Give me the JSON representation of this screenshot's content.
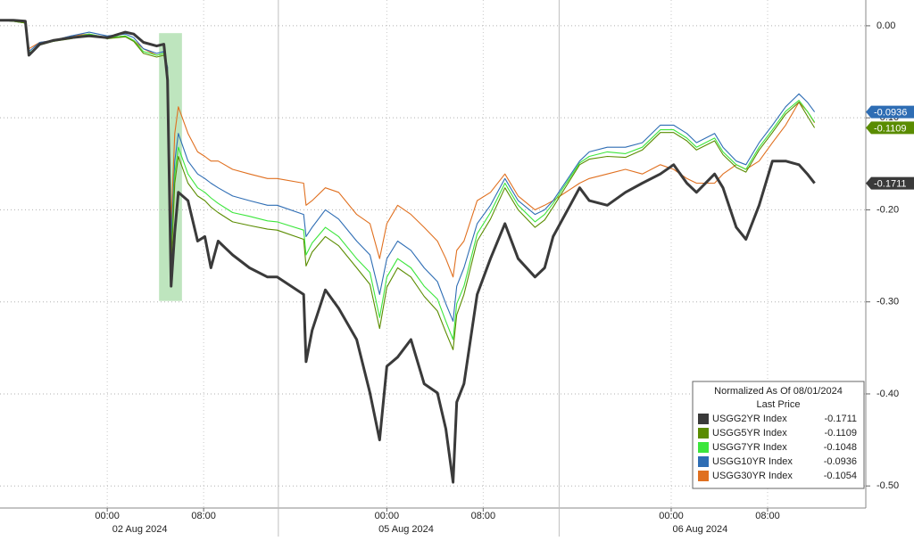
{
  "chart_data": {
    "type": "line",
    "legend_title": "Normalized As Of 08/01/2024",
    "legend_subtitle": "Last Price",
    "legend_position": "bottom-right",
    "grid": true,
    "x": [
      0,
      1.1,
      2.1,
      2.4,
      3.3,
      4.4,
      5.9,
      7.4,
      8.9,
      10.4,
      11.1,
      11.9,
      13.0,
      13.6,
      13.9,
      14.2,
      14.5,
      14.8,
      15.6,
      16.4,
      17.0,
      17.5,
      18.1,
      19.3,
      20.7,
      22.2,
      23.0,
      25.2,
      25.4,
      25.9,
      27.0,
      28.1,
      29.6,
      30.7,
      31.5,
      32.1,
      33.0,
      34.1,
      35.2,
      36.3,
      37.0,
      37.6,
      37.9,
      38.5,
      39.6,
      40.7,
      41.9,
      43.0,
      44.4,
      45.2,
      45.9,
      48.1,
      48.9,
      50.4,
      51.9,
      53.3,
      54.8,
      55.9,
      57.0,
      57.8,
      59.3,
      60.0,
      61.1,
      61.9,
      63.0,
      64.1,
      65.2,
      66.3,
      67.0,
      67.6
    ],
    "xlim": [
      0,
      71.85
    ],
    "xticks": [
      {
        "value": 8.9,
        "label": "00:00"
      },
      {
        "value": 16.9,
        "label": "08:00"
      },
      {
        "value": 32.1,
        "label": "00:00"
      },
      {
        "value": 40.1,
        "label": "08:00"
      },
      {
        "value": 55.7,
        "label": "00:00"
      },
      {
        "value": 63.7,
        "label": "08:00"
      }
    ],
    "date_labels": [
      {
        "value": 11.6,
        "label": "02 Aug 2024"
      },
      {
        "value": 33.7,
        "label": "05 Aug 2024"
      },
      {
        "value": 58.1,
        "label": "06 Aug 2024"
      }
    ],
    "session_breaks": [
      23.1,
      46.4
    ],
    "highlight_x": [
      13.2,
      15.1
    ],
    "highlight_y": [
      -0.299,
      -0.008
    ],
    "highlight_color": "#a8dca8",
    "ylim": [
      -0.524,
      0.028
    ],
    "yticks": [
      {
        "value": 0,
        "label": "0.00"
      },
      {
        "value": -0.1,
        "label": "-0.10"
      },
      {
        "value": -0.2,
        "label": "-0.20"
      },
      {
        "value": -0.3,
        "label": "-0.30"
      },
      {
        "value": -0.4,
        "label": "-0.40"
      },
      {
        "value": -0.5,
        "label": "-0.50"
      }
    ],
    "series": [
      {
        "name": "USGG2YR Index",
        "color": "#3a3a3a",
        "tag": true,
        "values": [
          0.006,
          0.006,
          0.005,
          -0.032,
          -0.02,
          -0.016,
          -0.013,
          -0.011,
          -0.013,
          -0.007,
          -0.009,
          -0.018,
          -0.022,
          -0.02,
          -0.059,
          -0.283,
          -0.224,
          -0.181,
          -0.19,
          -0.234,
          -0.229,
          -0.263,
          -0.234,
          -0.249,
          -0.263,
          -0.273,
          -0.273,
          -0.292,
          -0.365,
          -0.331,
          -0.287,
          -0.307,
          -0.341,
          -0.399,
          -0.45,
          -0.37,
          -0.36,
          -0.341,
          -0.389,
          -0.399,
          -0.438,
          -0.496,
          -0.409,
          -0.389,
          -0.292,
          -0.253,
          -0.215,
          -0.253,
          -0.273,
          -0.263,
          -0.229,
          -0.176,
          -0.19,
          -0.195,
          -0.181,
          -0.171,
          -0.161,
          -0.151,
          -0.171,
          -0.181,
          -0.161,
          -0.176,
          -0.219,
          -0.232,
          -0.195,
          -0.147,
          -0.147,
          -0.151,
          -0.161,
          -0.1711
        ]
      },
      {
        "name": "USGG5YR Index",
        "color": "#5a8c00",
        "tag": true,
        "values": [
          0.006,
          0.005,
          0.003,
          -0.031,
          -0.021,
          -0.017,
          -0.014,
          -0.01,
          -0.014,
          -0.012,
          -0.017,
          -0.03,
          -0.034,
          -0.032,
          -0.051,
          -0.263,
          -0.171,
          -0.142,
          -0.171,
          -0.185,
          -0.19,
          -0.197,
          -0.203,
          -0.213,
          -0.217,
          -0.221,
          -0.222,
          -0.232,
          -0.261,
          -0.246,
          -0.229,
          -0.239,
          -0.263,
          -0.281,
          -0.329,
          -0.284,
          -0.263,
          -0.273,
          -0.294,
          -0.31,
          -0.333,
          -0.352,
          -0.314,
          -0.292,
          -0.234,
          -0.21,
          -0.176,
          -0.2,
          -0.219,
          -0.211,
          -0.197,
          -0.151,
          -0.145,
          -0.142,
          -0.143,
          -0.135,
          -0.116,
          -0.116,
          -0.125,
          -0.135,
          -0.125,
          -0.14,
          -0.154,
          -0.159,
          -0.135,
          -0.116,
          -0.096,
          -0.083,
          -0.098,
          -0.1109
        ]
      },
      {
        "name": "USGG7YR Index",
        "color": "#3ce63c",
        "values": [
          0.006,
          0.005,
          0.003,
          -0.03,
          -0.02,
          -0.017,
          -0.013,
          -0.009,
          -0.013,
          -0.011,
          -0.016,
          -0.028,
          -0.032,
          -0.03,
          -0.05,
          -0.253,
          -0.161,
          -0.132,
          -0.161,
          -0.176,
          -0.181,
          -0.187,
          -0.193,
          -0.203,
          -0.207,
          -0.212,
          -0.213,
          -0.222,
          -0.249,
          -0.236,
          -0.219,
          -0.229,
          -0.253,
          -0.268,
          -0.317,
          -0.273,
          -0.253,
          -0.263,
          -0.283,
          -0.297,
          -0.321,
          -0.341,
          -0.302,
          -0.283,
          -0.226,
          -0.203,
          -0.171,
          -0.195,
          -0.213,
          -0.205,
          -0.193,
          -0.149,
          -0.142,
          -0.137,
          -0.139,
          -0.132,
          -0.113,
          -0.113,
          -0.122,
          -0.132,
          -0.122,
          -0.137,
          -0.151,
          -0.156,
          -0.132,
          -0.113,
          -0.093,
          -0.081,
          -0.093,
          -0.1048
        ]
      },
      {
        "name": "USGG10YR Index",
        "color": "#2e6db4",
        "tag": true,
        "values": [
          0.006,
          0.005,
          0.003,
          -0.028,
          -0.018,
          -0.016,
          -0.011,
          -0.007,
          -0.011,
          -0.009,
          -0.013,
          -0.025,
          -0.03,
          -0.028,
          -0.045,
          -0.234,
          -0.147,
          -0.117,
          -0.147,
          -0.161,
          -0.166,
          -0.171,
          -0.176,
          -0.185,
          -0.19,
          -0.195,
          -0.195,
          -0.205,
          -0.229,
          -0.219,
          -0.2,
          -0.21,
          -0.234,
          -0.249,
          -0.292,
          -0.253,
          -0.234,
          -0.244,
          -0.263,
          -0.278,
          -0.302,
          -0.321,
          -0.283,
          -0.263,
          -0.215,
          -0.195,
          -0.166,
          -0.19,
          -0.205,
          -0.2,
          -0.19,
          -0.147,
          -0.137,
          -0.132,
          -0.132,
          -0.127,
          -0.108,
          -0.108,
          -0.117,
          -0.127,
          -0.117,
          -0.132,
          -0.147,
          -0.151,
          -0.127,
          -0.108,
          -0.088,
          -0.074,
          -0.083,
          -0.0936
        ]
      },
      {
        "name": "USGG30YR Index",
        "color": "#e07020",
        "values": [
          0.006,
          0.005,
          0.003,
          -0.025,
          -0.018,
          -0.016,
          -0.011,
          -0.009,
          -0.013,
          -0.011,
          -0.016,
          -0.025,
          -0.032,
          -0.03,
          -0.045,
          -0.215,
          -0.117,
          -0.088,
          -0.117,
          -0.137,
          -0.142,
          -0.147,
          -0.147,
          -0.156,
          -0.161,
          -0.166,
          -0.166,
          -0.171,
          -0.195,
          -0.19,
          -0.176,
          -0.181,
          -0.205,
          -0.215,
          -0.253,
          -0.215,
          -0.195,
          -0.205,
          -0.219,
          -0.234,
          -0.253,
          -0.273,
          -0.244,
          -0.234,
          -0.19,
          -0.181,
          -0.161,
          -0.185,
          -0.2,
          -0.195,
          -0.19,
          -0.171,
          -0.166,
          -0.161,
          -0.156,
          -0.161,
          -0.151,
          -0.156,
          -0.166,
          -0.171,
          -0.171,
          -0.161,
          -0.151,
          -0.156,
          -0.147,
          -0.127,
          -0.108,
          -0.083,
          -0.093,
          -0.1054
        ]
      }
    ]
  }
}
